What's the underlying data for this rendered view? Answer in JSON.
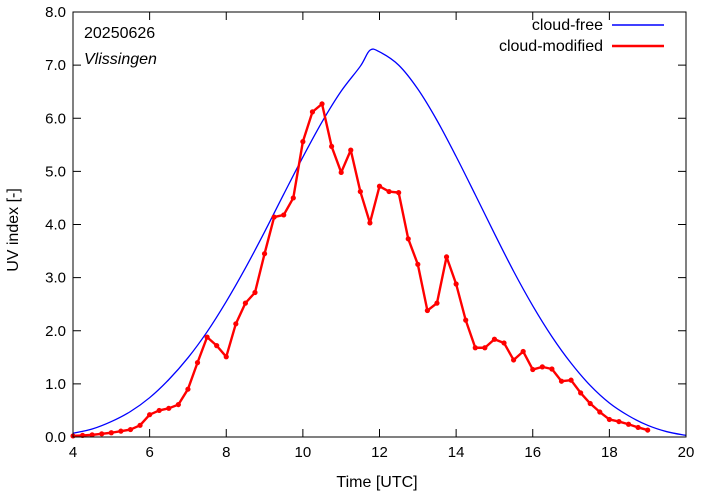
{
  "chart_data": {
    "type": "line",
    "title": "",
    "annotations": {
      "date": "20250626",
      "location": "Vlissingen"
    },
    "xlabel": "Time  [UTC]",
    "ylabel": "UV index  [-]",
    "xlim": [
      4,
      20
    ],
    "ylim": [
      0,
      8
    ],
    "x_ticks": [
      4,
      6,
      8,
      10,
      12,
      14,
      16,
      18,
      20
    ],
    "y_ticks": [
      0,
      1,
      2,
      3,
      4,
      5,
      6,
      7,
      8
    ],
    "y_tick_labels": [
      "0.0",
      "1.0",
      "2.0",
      "3.0",
      "4.0",
      "5.0",
      "6.0",
      "7.0",
      "8.0"
    ],
    "grid": false,
    "legend_position": "top-right",
    "series": [
      {
        "name": "cloud-free",
        "color": "#0000ff",
        "style": "line",
        "x": [
          4.0,
          4.5,
          5.0,
          5.5,
          6.0,
          6.5,
          7.0,
          7.5,
          8.0,
          8.5,
          9.0,
          9.5,
          10.0,
          10.5,
          11.0,
          11.5,
          11.75,
          12.0,
          12.5,
          13.0,
          13.5,
          14.0,
          14.5,
          15.0,
          15.5,
          16.0,
          16.5,
          17.0,
          17.5,
          18.0,
          18.5,
          19.0,
          19.5,
          20.0
        ],
        "y": [
          0.07,
          0.15,
          0.29,
          0.48,
          0.74,
          1.08,
          1.49,
          1.98,
          2.55,
          3.18,
          3.86,
          4.57,
          5.27,
          5.93,
          6.51,
          6.98,
          7.28,
          7.25,
          7.0,
          6.55,
          5.96,
          5.28,
          4.56,
          3.83,
          3.12,
          2.47,
          1.89,
          1.39,
          0.97,
          0.64,
          0.4,
          0.22,
          0.1,
          0.03
        ]
      },
      {
        "name": "cloud-modified",
        "color": "#ff0000",
        "style": "line-markers",
        "x": [
          4.0,
          4.25,
          4.5,
          4.75,
          5.0,
          5.25,
          5.5,
          5.75,
          6.0,
          6.25,
          6.5,
          6.75,
          7.0,
          7.25,
          7.5,
          7.75,
          8.0,
          8.25,
          8.5,
          8.75,
          9.0,
          9.25,
          9.5,
          9.75,
          10.0,
          10.25,
          10.5,
          10.75,
          11.0,
          11.25,
          11.5,
          11.75,
          12.0,
          12.25,
          12.5,
          12.75,
          13.0,
          13.25,
          13.5,
          13.75,
          14.0,
          14.25,
          14.5,
          14.75,
          15.0,
          15.25,
          15.5,
          15.75,
          16.0,
          16.25,
          16.5,
          16.75,
          17.0,
          17.25,
          17.5,
          17.75,
          18.0,
          18.25,
          18.5,
          18.75,
          19.0
        ],
        "y": [
          0.02,
          0.03,
          0.04,
          0.06,
          0.08,
          0.11,
          0.14,
          0.22,
          0.42,
          0.5,
          0.54,
          0.61,
          0.9,
          1.4,
          1.88,
          1.72,
          1.51,
          2.13,
          2.52,
          2.72,
          3.45,
          4.14,
          4.18,
          4.5,
          5.56,
          6.12,
          6.27,
          5.47,
          4.98,
          5.4,
          4.62,
          4.03,
          4.72,
          4.62,
          4.6,
          3.73,
          3.25,
          2.38,
          2.52,
          3.39,
          2.88,
          2.2,
          1.68,
          1.68,
          1.84,
          1.77,
          1.45,
          1.61,
          1.27,
          1.32,
          1.28,
          1.05,
          1.07,
          0.83,
          0.63,
          0.47,
          0.33,
          0.29,
          0.24,
          0.18,
          0.13
        ]
      }
    ]
  }
}
